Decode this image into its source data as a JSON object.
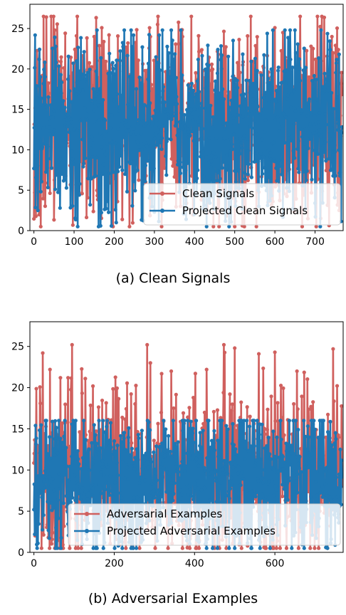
{
  "chart_data": [
    {
      "type": "line",
      "caption": "(a)  Clean Signals",
      "xlim": [
        -10,
        770
      ],
      "ylim": [
        0,
        28
      ],
      "x_ticks": [
        0,
        100,
        200,
        300,
        400,
        500,
        600,
        700
      ],
      "y_ticks": [
        0,
        5,
        10,
        15,
        20,
        25
      ],
      "n_points": 768,
      "legend": {
        "placement": "lower-right"
      },
      "series": [
        {
          "name": "Clean Signals",
          "color": "#d0605e",
          "summary": {
            "min": 0.5,
            "max": 26.5,
            "typical_low": 8,
            "typical_high": 18
          },
          "peaks": [
            [
              24,
              26.5
            ],
            [
              52,
              24.8
            ],
            [
              150,
              24.0
            ],
            [
              187,
              24.2
            ],
            [
              290,
              24.0
            ],
            [
              308,
              25.5
            ],
            [
              370,
              24.0
            ],
            [
              410,
              24.1
            ],
            [
              600,
              25.1
            ],
            [
              620,
              24.5
            ],
            [
              660,
              23.0
            ],
            [
              690,
              22.8
            ],
            [
              742,
              24.0
            ]
          ]
        },
        {
          "name": "Projected Clean Signals",
          "color": "#1f77b4",
          "summary": {
            "min": 0.5,
            "max": 24.8,
            "typical_low": 8,
            "typical_high": 18
          },
          "troughs": [
            [
              10,
              2.5
            ],
            [
              65,
              2.8
            ],
            [
              140,
              3.2
            ],
            [
              205,
              1.0
            ],
            [
              300,
              2.3
            ],
            [
              430,
              0.5
            ],
            [
              560,
              3.0
            ],
            [
              700,
              3.4
            ]
          ]
        }
      ]
    },
    {
      "type": "line",
      "caption": "(b)  Adversarial Examples",
      "xlim": [
        -10,
        770
      ],
      "ylim": [
        0,
        28
      ],
      "x_ticks": [
        0,
        200,
        400,
        600
      ],
      "y_ticks": [
        0,
        5,
        10,
        15,
        20,
        25
      ],
      "n_points": 768,
      "legend": {
        "placement": "lower-right"
      },
      "series": [
        {
          "name": "Adversarial Examples",
          "color": "#d0605e",
          "summary": {
            "min": 0.5,
            "max": 25.2,
            "typical_low": 5,
            "typical_high": 14
          },
          "peaks": [
            [
              22,
              24.2
            ],
            [
              40,
              22.2
            ],
            [
              85,
              21.2
            ],
            [
              128,
              21.1
            ],
            [
              282,
              25.2
            ],
            [
              290,
              23.0
            ],
            [
              342,
              22.0
            ],
            [
              430,
              22.2
            ],
            [
              500,
              24.8
            ],
            [
              560,
              24.1
            ],
            [
              600,
              24.3
            ],
            [
              655,
              22.0
            ],
            [
              745,
              24.7
            ]
          ]
        },
        {
          "name": "Projected Adversarial Examples",
          "color": "#1f77b4",
          "summary": {
            "min": 0.5,
            "max": 16.0,
            "typical_low": 5,
            "typical_high": 13
          },
          "troughs": [
            [
              10,
              1.1
            ],
            [
              55,
              3.0
            ],
            [
              210,
              0.8
            ],
            [
              430,
              0.5
            ],
            [
              560,
              1.5
            ],
            [
              670,
              1.0
            ],
            [
              740,
              1.6
            ]
          ]
        }
      ]
    }
  ]
}
